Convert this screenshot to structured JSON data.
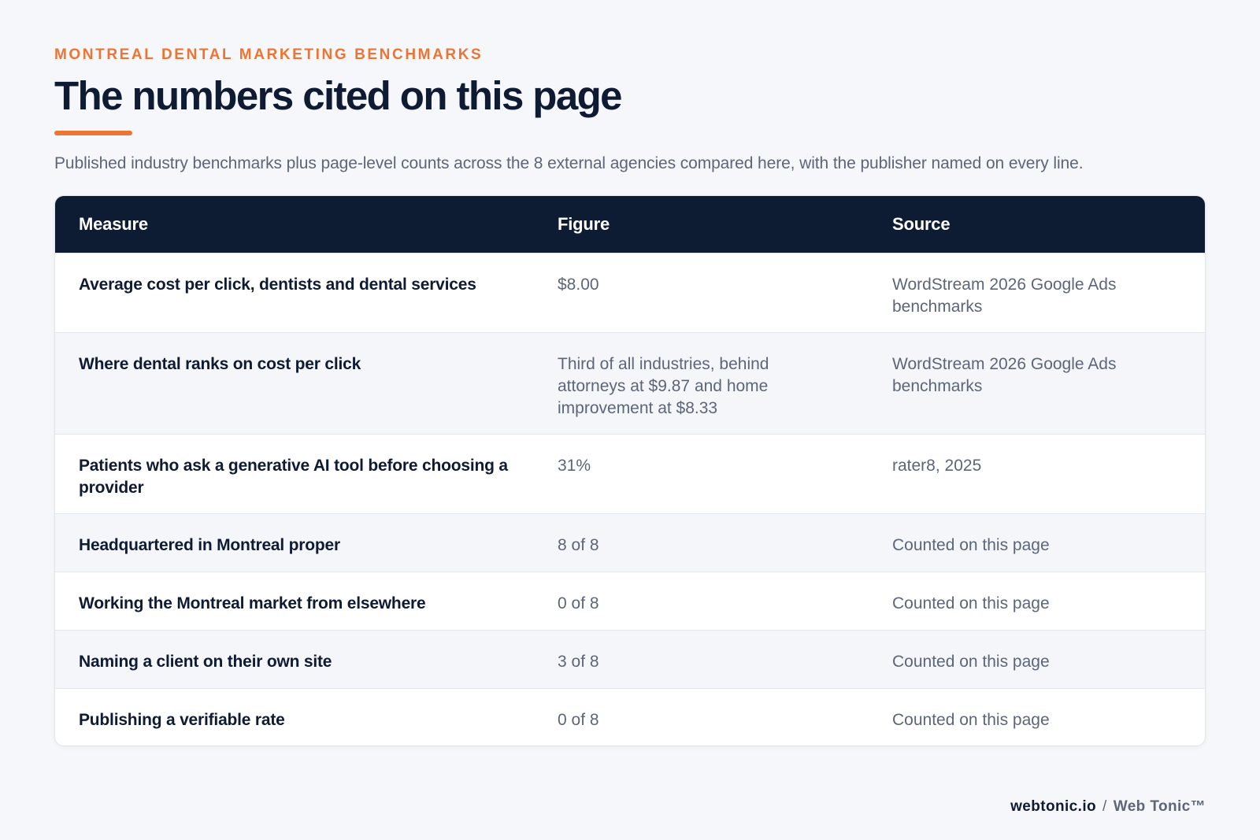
{
  "header": {
    "eyebrow": "MONTREAL DENTAL MARKETING BENCHMARKS",
    "title": "The numbers cited on this page",
    "subtitle": "Published industry benchmarks plus page-level counts across the 8 external agencies compared here, with the publisher named on every line."
  },
  "table": {
    "columns": [
      "Measure",
      "Figure",
      "Source"
    ],
    "rows": [
      {
        "measure": "Average cost per click, dentists and dental services",
        "figure": "$8.00",
        "source": "WordStream 2026 Google Ads benchmarks"
      },
      {
        "measure": "Where dental ranks on cost per click",
        "figure": "Third of all industries, behind attorneys at $9.87 and home improvement at $8.33",
        "source": "WordStream 2026 Google Ads benchmarks"
      },
      {
        "measure": "Patients who ask a generative AI tool before choosing a provider",
        "figure": "31%",
        "source": "rater8, 2025"
      },
      {
        "measure": "Headquartered in Montreal proper",
        "figure": "8 of 8",
        "source": "Counted on this page"
      },
      {
        "measure": "Working the Montreal market from elsewhere",
        "figure": "0 of 8",
        "source": "Counted on this page"
      },
      {
        "measure": "Naming a client on their own site",
        "figure": "3 of 8",
        "source": "Counted on this page"
      },
      {
        "measure": "Publishing a verifiable rate",
        "figure": "0 of 8",
        "source": "Counted on this page"
      }
    ]
  },
  "footer": {
    "domain": "webtonic.io",
    "separator": "/",
    "brand": "Web Tonic™"
  },
  "colors": {
    "accent": "#ee7433",
    "header_bg": "#0d1b33",
    "page_bg": "#f5f7fa"
  }
}
